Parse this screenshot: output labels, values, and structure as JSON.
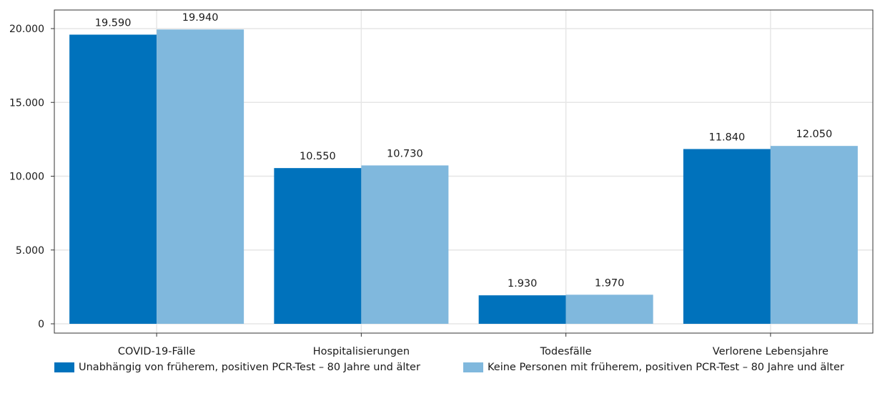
{
  "chart_data": {
    "type": "bar",
    "categories": [
      "COVID-19-Fälle",
      "Hospitalisierungen",
      "Todesfälle",
      "Verlorene Lebensjahre"
    ],
    "series": [
      {
        "name": "Unabhängig von früherem, positiven PCR-Test – 80 Jahre und älter",
        "color": "#0072bc",
        "values": [
          19590,
          10550,
          1930,
          11840
        ],
        "labels": [
          "19.590",
          "10.550",
          "1.930",
          "11.840"
        ]
      },
      {
        "name": "Keine Personen mit  früherem, positiven PCR-Test – 80 Jahre und älter",
        "color": "#80b8dd",
        "values": [
          19940,
          10730,
          1970,
          12050
        ],
        "labels": [
          "19.940",
          "10.730",
          "1.970",
          "12.050"
        ]
      }
    ],
    "ylim": [
      0,
      20000
    ],
    "yticks": [
      0,
      5000,
      10000,
      15000,
      20000
    ],
    "ytick_labels": [
      "0",
      "5.000",
      "10.000",
      "15.000",
      "20.000"
    ],
    "grid": true,
    "legend_position": "bottom"
  }
}
